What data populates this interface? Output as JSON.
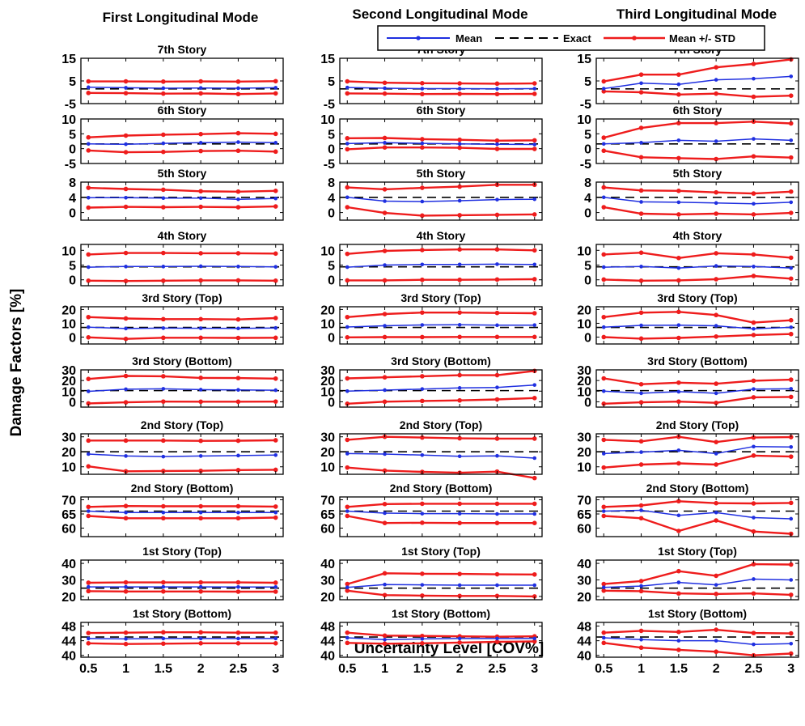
{
  "figure": {
    "column_titles": [
      "First Longitudinal Mode",
      "Second Longitudinal Mode",
      "Third Longitudinal Mode"
    ],
    "ylabel": "Damage Factors [%]",
    "xlabel": "Uncertainty Level [COV%]",
    "legend": [
      "Mean",
      "Exact",
      "Mean +/- STD"
    ]
  },
  "chart_data": {
    "type": "line",
    "layout": "10 rows x 3 columns of small multiples",
    "x": [
      0.5,
      1,
      1.5,
      2,
      2.5,
      3
    ],
    "x_ticks": [
      "0.5",
      "1",
      "1.5",
      "2",
      "2.5",
      "3"
    ],
    "x_range": [
      0.4,
      3.1
    ],
    "legend_placement": "top-right",
    "grid": false,
    "colors": {
      "Mean": "#1f2fe0",
      "Exact": "#000000",
      "Mean +/- STD": "#ee1c1c"
    },
    "rows": [
      {
        "title": "7th Story",
        "ylim": [
          -5,
          15
        ],
        "yticks": [
          "-5",
          "5",
          "15"
        ],
        "ytick_values": [
          -5,
          5,
          15
        ],
        "panels": [
          {
            "mean": [
              2.2,
              2.0,
              1.8,
              1.9,
              1.8,
              2.0
            ],
            "exact": 1.5,
            "upper": [
              4.8,
              4.8,
              4.7,
              4.8,
              4.7,
              4.9
            ],
            "lower": [
              -0.3,
              -0.4,
              -0.6,
              -0.5,
              -0.8,
              -0.5
            ]
          },
          {
            "mean": [
              2.1,
              1.8,
              1.6,
              1.6,
              1.5,
              1.6
            ],
            "exact": 1.5,
            "upper": [
              4.8,
              4.2,
              4.0,
              3.9,
              3.8,
              3.9
            ],
            "lower": [
              -0.5,
              -0.6,
              -0.8,
              -0.7,
              -0.8,
              -0.7
            ]
          },
          {
            "mean": [
              1.6,
              4.0,
              3.5,
              5.5,
              6.0,
              7.0
            ],
            "exact": 1.5,
            "upper": [
              4.8,
              7.8,
              7.8,
              11.0,
              12.5,
              14.5
            ],
            "lower": [
              0.4,
              0.0,
              -1.0,
              -0.6,
              -2.0,
              -1.5
            ]
          }
        ]
      },
      {
        "title": "6th Story",
        "ylim": [
          -5,
          10
        ],
        "yticks": [
          "-5",
          "0",
          "5",
          "10"
        ],
        "ytick_values": [
          -5,
          0,
          5,
          10
        ],
        "panels": [
          {
            "mean": [
              1.6,
              1.5,
              1.8,
              2.0,
              2.2,
              2.0
            ],
            "exact": 1.6,
            "upper": [
              3.8,
              4.4,
              4.7,
              4.9,
              5.2,
              5.0
            ],
            "lower": [
              -0.6,
              -1.2,
              -1.1,
              -0.8,
              -0.7,
              -1.0
            ]
          },
          {
            "mean": [
              1.7,
              2.0,
              1.8,
              1.6,
              1.5,
              1.4
            ],
            "exact": 1.6,
            "upper": [
              3.5,
              3.6,
              3.2,
              3.0,
              2.7,
              2.8
            ],
            "lower": [
              -0.2,
              0.4,
              0.4,
              0.3,
              -0.1,
              -0.1
            ]
          },
          {
            "mean": [
              1.6,
              2.0,
              2.8,
              2.5,
              3.3,
              2.8
            ],
            "exact": 1.6,
            "upper": [
              3.7,
              7.0,
              8.6,
              8.6,
              9.1,
              8.5
            ],
            "lower": [
              -0.7,
              -2.9,
              -3.2,
              -3.5,
              -2.6,
              -3.0
            ]
          }
        ]
      },
      {
        "title": "5th Story",
        "ylim": [
          -2,
          8
        ],
        "yticks": [
          "0",
          "4",
          "8"
        ],
        "ytick_values": [
          0,
          4,
          8
        ],
        "panels": [
          {
            "mean": [
              3.9,
              3.9,
              3.8,
              3.8,
              3.5,
              3.7
            ],
            "exact": 4.0,
            "upper": [
              6.5,
              6.2,
              6.0,
              5.6,
              5.5,
              5.7
            ],
            "lower": [
              1.3,
              1.5,
              1.4,
              1.5,
              1.4,
              1.6
            ]
          },
          {
            "mean": [
              4.0,
              3.0,
              2.9,
              3.1,
              3.4,
              3.5
            ],
            "exact": 4.0,
            "upper": [
              6.6,
              6.1,
              6.5,
              6.8,
              7.3,
              7.3
            ],
            "lower": [
              1.4,
              -0.1,
              -0.8,
              -0.7,
              -0.6,
              -0.5
            ]
          },
          {
            "mean": [
              4.0,
              2.8,
              2.7,
              2.5,
              2.3,
              2.7
            ],
            "exact": 4.0,
            "upper": [
              6.6,
              5.8,
              5.7,
              5.3,
              5.0,
              5.5
            ],
            "lower": [
              1.4,
              -0.3,
              -0.5,
              -0.3,
              -0.5,
              -0.1
            ]
          }
        ]
      },
      {
        "title": "4th Story",
        "ylim": [
          -2,
          12
        ],
        "yticks": [
          "0",
          "5",
          "10"
        ],
        "ytick_values": [
          0,
          5,
          10
        ],
        "panels": [
          {
            "mean": [
              4.3,
              4.5,
              4.5,
              4.6,
              4.5,
              4.4
            ],
            "exact": 4.4,
            "upper": [
              8.6,
              9.1,
              9.1,
              9.0,
              9.0,
              8.9
            ],
            "lower": [
              -0.3,
              -0.4,
              -0.3,
              -0.2,
              -0.2,
              -0.3
            ]
          },
          {
            "mean": [
              4.3,
              5.0,
              5.2,
              5.2,
              5.3,
              5.2
            ],
            "exact": 4.4,
            "upper": [
              8.8,
              9.8,
              10.1,
              10.3,
              10.3,
              10.0
            ],
            "lower": [
              -0.2,
              -0.2,
              0.0,
              0.0,
              0.1,
              0.2
            ]
          },
          {
            "mean": [
              4.3,
              4.5,
              4.0,
              4.7,
              4.5,
              4.0
            ],
            "exact": 4.4,
            "upper": [
              8.6,
              9.2,
              7.4,
              9.0,
              8.6,
              7.5
            ],
            "lower": [
              0.1,
              -0.3,
              -0.2,
              0.2,
              1.3,
              0.4
            ]
          }
        ]
      },
      {
        "title": "3rd Story (Top)",
        "ylim": [
          -5,
          22
        ],
        "yticks": [
          "0",
          "10",
          "20"
        ],
        "ytick_values": [
          0,
          10,
          20
        ],
        "panels": [
          {
            "mean": [
              7.2,
              6.2,
              6.5,
              6.4,
              6.3,
              6.6
            ],
            "exact": 7.0,
            "upper": [
              14.5,
              13.5,
              13.0,
              13.0,
              12.8,
              13.8
            ],
            "lower": [
              -0.2,
              -1.3,
              -0.5,
              -0.5,
              -0.6,
              -0.5
            ]
          },
          {
            "mean": [
              7.3,
              8.2,
              8.8,
              8.9,
              8.6,
              8.7
            ],
            "exact": 7.0,
            "upper": [
              14.5,
              16.7,
              17.8,
              17.8,
              17.5,
              17.3
            ],
            "lower": [
              -0.2,
              0.0,
              0.0,
              0.1,
              0.1,
              0.1
            ]
          },
          {
            "mean": [
              7.2,
              8.5,
              8.7,
              8.2,
              6.0,
              7.1
            ],
            "exact": 7.0,
            "upper": [
              14.5,
              17.7,
              18.3,
              16.0,
              10.5,
              12.2
            ],
            "lower": [
              0.0,
              -1.1,
              -0.6,
              0.4,
              1.5,
              2.2
            ]
          }
        ]
      },
      {
        "title": "3rd Story (Bottom)",
        "ylim": [
          -5,
          30
        ],
        "yticks": [
          "0",
          "10",
          "20",
          "30"
        ],
        "ytick_values": [
          0,
          10,
          20,
          30
        ],
        "panels": [
          {
            "mean": [
              9.8,
              11.8,
              12.2,
              11.4,
              11.2,
              10.9
            ],
            "exact": 10.5,
            "upper": [
              21.5,
              24.3,
              24.0,
              22.5,
              22.3,
              21.8
            ],
            "lower": [
              -1.5,
              -0.5,
              0.2,
              0.1,
              0.1,
              0.2
            ]
          },
          {
            "mean": [
              10.0,
              11.0,
              12.0,
              13.0,
              13.5,
              15.8
            ],
            "exact": 10.5,
            "upper": [
              22.0,
              23.0,
              24.0,
              25.0,
              25.0,
              29.0
            ],
            "lower": [
              -1.8,
              0.1,
              0.8,
              1.3,
              2.2,
              3.5
            ]
          },
          {
            "mean": [
              10.0,
              8.0,
              9.5,
              8.0,
              12.0,
              12.2
            ],
            "exact": 10.5,
            "upper": [
              22.0,
              16.5,
              18.0,
              17.0,
              19.8,
              20.8
            ],
            "lower": [
              -1.8,
              -0.5,
              0.2,
              -1.0,
              4.2,
              4.6
            ]
          }
        ]
      },
      {
        "title": "2nd Story (Top)",
        "ylim": [
          5,
          32
        ],
        "yticks": [
          "10",
          "20",
          "30"
        ],
        "ytick_values": [
          10,
          20,
          30
        ],
        "panels": [
          {
            "mean": [
              18.5,
              17.2,
              16.8,
              17.2,
              17.5,
              17.8
            ],
            "exact": 20.0,
            "upper": [
              27.5,
              27.5,
              27.5,
              27.3,
              27.4,
              27.7
            ],
            "lower": [
              10.3,
              7.0,
              7.2,
              7.3,
              7.8,
              8.0
            ]
          },
          {
            "mean": [
              18.8,
              18.5,
              17.8,
              17.0,
              17.3,
              15.8
            ],
            "exact": 20.0,
            "upper": [
              28.0,
              30.0,
              29.5,
              29.0,
              28.8,
              28.8
            ],
            "lower": [
              9.5,
              7.5,
              6.6,
              6.0,
              6.8,
              2.5
            ]
          },
          {
            "mean": [
              18.8,
              19.8,
              21.0,
              18.8,
              23.5,
              23.2
            ],
            "exact": 20.0,
            "upper": [
              28.0,
              27.0,
              30.0,
              26.5,
              29.5,
              29.8
            ],
            "lower": [
              9.5,
              11.5,
              12.3,
              11.5,
              17.5,
              16.8
            ]
          }
        ]
      },
      {
        "title": "2nd Story (Bottom)",
        "ylim": [
          57,
          71
        ],
        "yticks": [
          "60",
          "65",
          "70"
        ],
        "ytick_values": [
          60,
          65,
          70
        ],
        "panels": [
          {
            "mean": [
              66.0,
              65.5,
              65.5,
              65.5,
              65.5,
              65.5
            ],
            "exact": 66.0,
            "upper": [
              67.5,
              67.8,
              67.7,
              67.7,
              67.7,
              67.6
            ],
            "lower": [
              64.3,
              63.5,
              63.5,
              63.5,
              63.5,
              63.7
            ]
          },
          {
            "mean": [
              66.0,
              65.3,
              65.1,
              65.1,
              65.0,
              65.0
            ],
            "exact": 66.0,
            "upper": [
              67.5,
              68.5,
              68.6,
              68.6,
              68.6,
              68.6
            ],
            "lower": [
              64.3,
              61.8,
              61.9,
              61.8,
              61.8,
              61.8
            ]
          },
          {
            "mean": [
              66.0,
              66.3,
              64.5,
              65.5,
              63.7,
              63.3
            ],
            "exact": 66.0,
            "upper": [
              67.5,
              68.0,
              69.5,
              68.8,
              68.7,
              68.9
            ],
            "lower": [
              64.3,
              63.5,
              59.0,
              62.7,
              58.8,
              58.0
            ]
          }
        ]
      },
      {
        "title": "1st Story (Top)",
        "ylim": [
          18,
          42
        ],
        "yticks": [
          "20",
          "30",
          "40"
        ],
        "ytick_values": [
          20,
          30,
          40
        ],
        "panels": [
          {
            "mean": [
              25.8,
              25.8,
              25.8,
              25.8,
              25.7,
              25.7
            ],
            "exact": 25.0,
            "upper": [
              28.3,
              28.5,
              28.5,
              28.5,
              28.5,
              28.3
            ],
            "lower": [
              23.2,
              23.0,
              23.0,
              23.0,
              22.9,
              22.9
            ]
          },
          {
            "mean": [
              25.5,
              27.2,
              27.0,
              26.8,
              26.8,
              26.8
            ],
            "exact": 25.0,
            "upper": [
              27.5,
              34.0,
              33.7,
              33.6,
              33.4,
              33.3
            ],
            "lower": [
              23.5,
              20.8,
              20.5,
              20.3,
              20.3,
              20.0
            ]
          },
          {
            "mean": [
              25.5,
              26.3,
              28.5,
              27.0,
              30.5,
              30.0
            ],
            "exact": 25.0,
            "upper": [
              27.5,
              29.3,
              35.3,
              32.5,
              39.5,
              39.3
            ],
            "lower": [
              23.5,
              23.2,
              21.8,
              21.5,
              21.8,
              21.0
            ]
          }
        ]
      },
      {
        "title": "1st Story (Bottom)",
        "ylim": [
          39.5,
          49
        ],
        "yticks": [
          "40",
          "44",
          "48"
        ],
        "ytick_values": [
          40,
          44,
          48
        ],
        "panels": [
          {
            "mean": [
              44.6,
              44.5,
              44.6,
              44.6,
              44.6,
              44.6
            ],
            "exact": 45.0,
            "upper": [
              46.1,
              46.2,
              46.3,
              46.3,
              46.2,
              46.2
            ],
            "lower": [
              43.3,
              43.1,
              43.2,
              43.3,
              43.3,
              43.3
            ]
          },
          {
            "mean": [
              44.8,
              44.3,
              44.5,
              44.6,
              44.6,
              44.6
            ],
            "exact": 45.0,
            "upper": [
              46.2,
              45.4,
              45.3,
              45.2,
              45.1,
              45.2
            ],
            "lower": [
              43.4,
              43.2,
              43.3,
              43.5,
              43.7,
              43.8
            ]
          },
          {
            "mean": [
              44.8,
              44.3,
              44.0,
              44.0,
              43.0,
              43.2
            ],
            "exact": 45.0,
            "upper": [
              46.2,
              46.7,
              46.4,
              47.0,
              46.1,
              46.0
            ],
            "lower": [
              43.4,
              42.1,
              41.5,
              41.0,
              40.0,
              40.5
            ]
          }
        ]
      }
    ]
  }
}
